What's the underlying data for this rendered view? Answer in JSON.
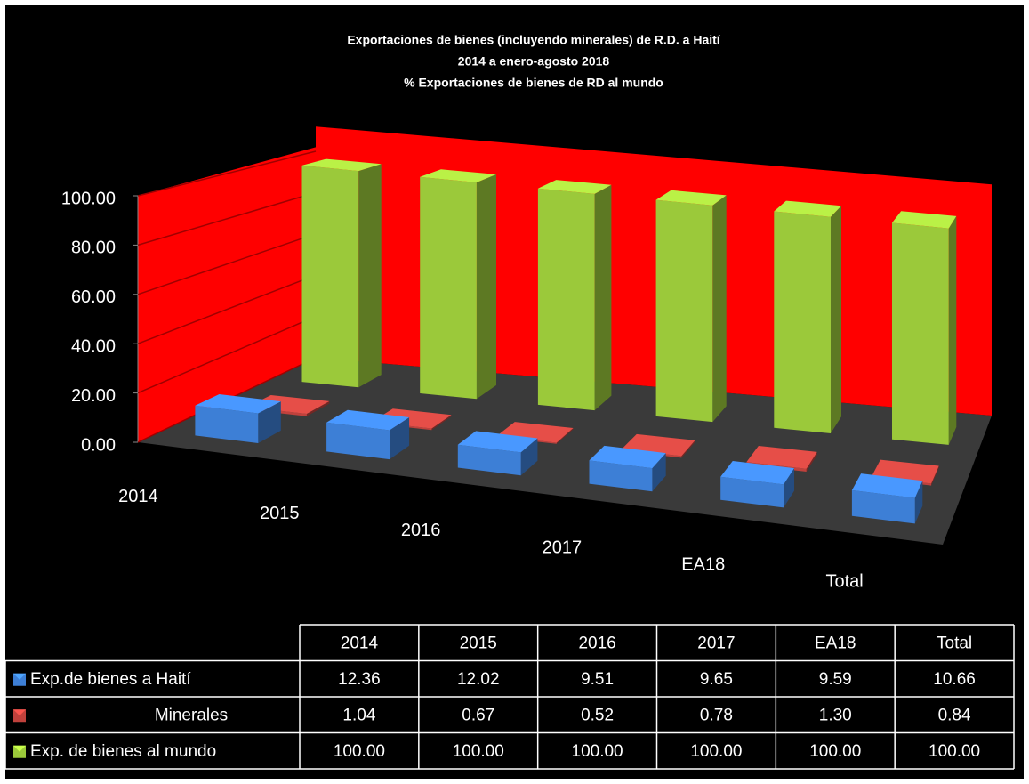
{
  "chart_data": {
    "type": "bar3d",
    "title": [
      "Exportaciones de bienes (incluyendo minerales) de R.D. a Haití",
      "2014 a enero-agosto 2018",
      "% Exportaciones de bienes de RD al mundo"
    ],
    "categories": [
      "2014",
      "2015",
      "2016",
      "2017",
      "EA18",
      "Total"
    ],
    "series": [
      {
        "name": "Exp.de bienes a Haití",
        "color": "#3d7fd6",
        "values": [
          12.36,
          12.02,
          9.51,
          9.65,
          9.59,
          10.66
        ],
        "value_labels": [
          "12.36",
          "12.02",
          "9.51",
          "9.65",
          "9.59",
          "10.66"
        ]
      },
      {
        "name": "Minerales",
        "color": "#c0413c",
        "values": [
          1.04,
          0.67,
          0.52,
          0.78,
          1.3,
          0.84
        ],
        "value_labels": [
          "1.04",
          "0.67",
          "0.52",
          "0.78",
          "1.30",
          "0.84"
        ]
      },
      {
        "name": "Exp. de bienes al mundo",
        "color": "#9bc93a",
        "values": [
          100,
          100,
          100,
          100,
          100,
          100
        ],
        "value_labels": [
          "100.00",
          "100.00",
          "100.00",
          "100.00",
          "100.00",
          "100.00"
        ]
      }
    ],
    "ylim": [
      0,
      100
    ],
    "yticks": [
      {
        "value": 0,
        "label": "0.00"
      },
      {
        "value": 20,
        "label": "20.00"
      },
      {
        "value": 40,
        "label": "40.00"
      },
      {
        "value": 60,
        "label": "60.00"
      },
      {
        "value": 80,
        "label": "80.00"
      },
      {
        "value": 100,
        "label": "100.00"
      }
    ],
    "grid": true,
    "wall_color": "#ff0000",
    "floor_color": "#3a3a3a"
  }
}
